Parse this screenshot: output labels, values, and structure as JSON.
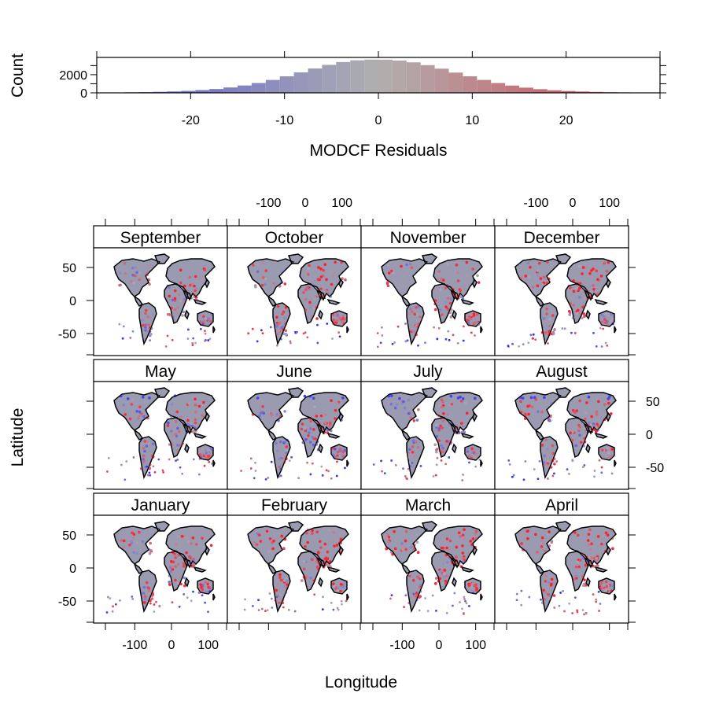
{
  "chart_data": [
    {
      "type": "histogram",
      "xlabel": "MODCF Residuals",
      "ylabel": "Count",
      "xlim": [
        -30,
        30
      ],
      "ylim": [
        0,
        3900
      ],
      "x_ticks": [
        -20,
        -10,
        0,
        10,
        20
      ],
      "y_tick_labels": [
        0,
        2000
      ],
      "y_ticks": [
        0,
        1000,
        2000,
        3000
      ],
      "bin_width": 1.5,
      "bin_starts": [
        -30,
        -28.5,
        -27,
        -25.5,
        -24,
        -22.5,
        -21,
        -19.5,
        -18,
        -16.5,
        -15,
        -13.5,
        -12,
        -10.5,
        -9,
        -7.5,
        -6,
        -4.5,
        -3,
        -1.5,
        0,
        1.5,
        3,
        4.5,
        6,
        7.5,
        9,
        10.5,
        12,
        13.5,
        15,
        16.5,
        18,
        19.5,
        21,
        22.5,
        24,
        25.5,
        27,
        28.5
      ],
      "counts": [
        30,
        40,
        60,
        80,
        110,
        150,
        210,
        300,
        420,
        590,
        810,
        1080,
        1420,
        1820,
        2250,
        2680,
        3080,
        3390,
        3580,
        3660,
        3650,
        3560,
        3360,
        3050,
        2660,
        2230,
        1820,
        1420,
        1080,
        800,
        570,
        400,
        280,
        200,
        140,
        100,
        70,
        50,
        30,
        20
      ],
      "fill_scale": {
        "low": "#5a5ad2",
        "mid": "#b0b0b0",
        "high": "#d2444f"
      }
    },
    {
      "type": "scatter",
      "subtype": "trellis-map",
      "xlabel": "Longitude",
      "ylabel": "Latitude",
      "xlim": [
        -180,
        180
      ],
      "ylim": [
        -90,
        90
      ],
      "x_tick_labels": [
        -100,
        0,
        100
      ],
      "y_tick_labels": [
        50,
        0,
        -50
      ],
      "panel_rows": [
        [
          "September",
          "October",
          "November",
          "December"
        ],
        [
          "May",
          "June",
          "July",
          "August"
        ],
        [
          "January",
          "February",
          "March",
          "April"
        ]
      ],
      "color_scale": {
        "negative": "#2a2aff",
        "zero": "#a8a8b8",
        "positive": "#ff1f2f"
      },
      "land_color": "#9a9ab0",
      "coastline_color": "#000000"
    }
  ]
}
